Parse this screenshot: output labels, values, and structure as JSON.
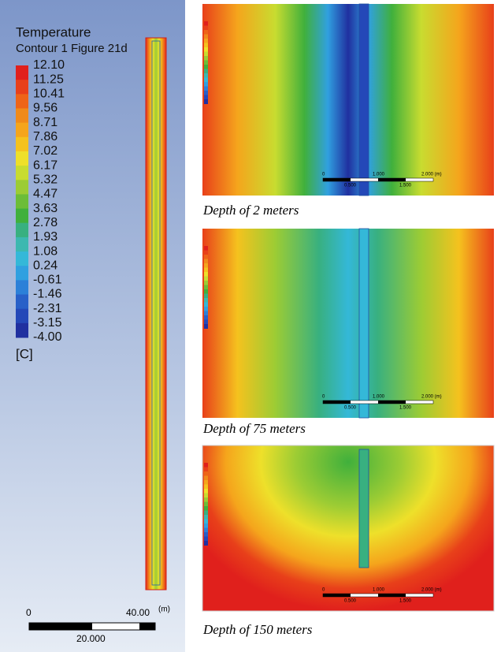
{
  "legend": {
    "title": "Temperature",
    "subtitle": "Contour 1 Figure 21d",
    "levels": [
      "12.10",
      "11.25",
      "10.41",
      "9.56",
      "8.71",
      "7.86",
      "7.02",
      "6.17",
      "5.32",
      "4.47",
      "3.63",
      "2.78",
      "1.93",
      "1.08",
      "0.24",
      "-0.61",
      "-1.46",
      "-2.31",
      "-3.15",
      "-4.00"
    ],
    "unit": "[C]"
  },
  "scale": {
    "start": "0",
    "end": "40.00",
    "unit": "(m)",
    "mid": "20.000"
  },
  "panels": [
    {
      "caption": "Depth of 2 meters",
      "scale": {
        "zero": "0",
        "one": "1.000",
        "two": "2.000 (m)",
        "half": "0.500",
        "three_half": "1.500"
      }
    },
    {
      "caption": "Depth of 75 meters",
      "scale": {
        "zero": "0",
        "one": "1.000",
        "two": "2.000 (m)",
        "half": "0.500",
        "three_half": "1.500"
      }
    },
    {
      "caption": "Depth of 150 meters",
      "scale": {
        "zero": "0",
        "one": "1.000",
        "two": "2.000 (m)",
        "half": "0.500",
        "three_half": "1.500"
      }
    }
  ]
}
